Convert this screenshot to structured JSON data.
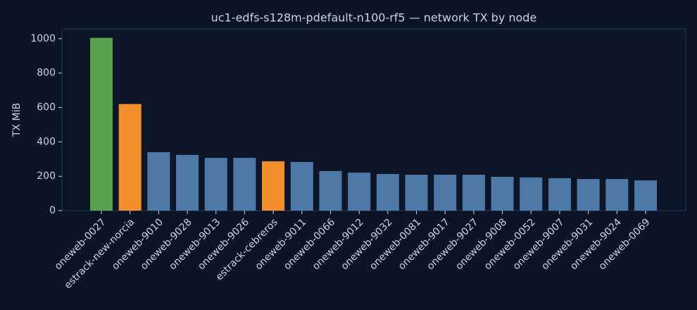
{
  "chart_data": {
    "type": "bar",
    "title": "uc1-edfs-s128m-pdefault-n100-rf5 — network TX by node",
    "y_label": "TX MiB",
    "categories": [
      "oneweb-0027",
      "estrack-new-norcia",
      "oneweb-9010",
      "oneweb-9028",
      "oneweb-9013",
      "oneweb-9026",
      "estrack-cebreros",
      "oneweb-9011",
      "oneweb-0066",
      "oneweb-9012",
      "oneweb-9032",
      "oneweb-0081",
      "oneweb-9017",
      "oneweb-9027",
      "oneweb-9008",
      "oneweb-0052",
      "oneweb-9007",
      "oneweb-9031",
      "oneweb-9024",
      "oneweb-0069"
    ],
    "values": [
      1005,
      620,
      340,
      324,
      307,
      307,
      287,
      283,
      230,
      221,
      213,
      209,
      209,
      209,
      197,
      193,
      189,
      184,
      184,
      176
    ],
    "colors": [
      "#59a14f",
      "#f28e2b",
      "#4e79a7",
      "#4e79a7",
      "#4e79a7",
      "#4e79a7",
      "#f28e2b",
      "#4e79a7",
      "#4e79a7",
      "#4e79a7",
      "#4e79a7",
      "#4e79a7",
      "#4e79a7",
      "#4e79a7",
      "#4e79a7",
      "#4e79a7",
      "#4e79a7",
      "#4e79a7",
      "#4e79a7",
      "#4e79a7"
    ],
    "ylim": [
      0,
      1057
    ],
    "yticks": [
      0,
      200,
      400,
      600,
      800,
      1000
    ],
    "grid": false
  }
}
